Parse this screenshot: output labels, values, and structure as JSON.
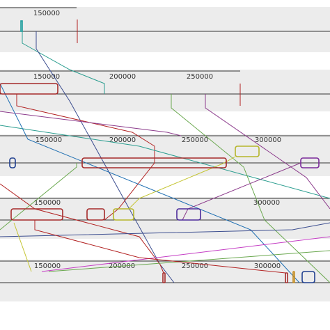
{
  "tracks": [
    {
      "ticks": [
        "150000"
      ]
    },
    {
      "ticks": [
        "150000",
        "200000",
        "250000"
      ]
    },
    {
      "ticks": [
        "150000",
        "200000",
        "250000",
        "300000"
      ]
    },
    {
      "ticks": [
        "150000",
        "300000"
      ]
    },
    {
      "ticks": [
        "150000",
        "200000",
        "250000",
        "300000"
      ]
    }
  ]
}
